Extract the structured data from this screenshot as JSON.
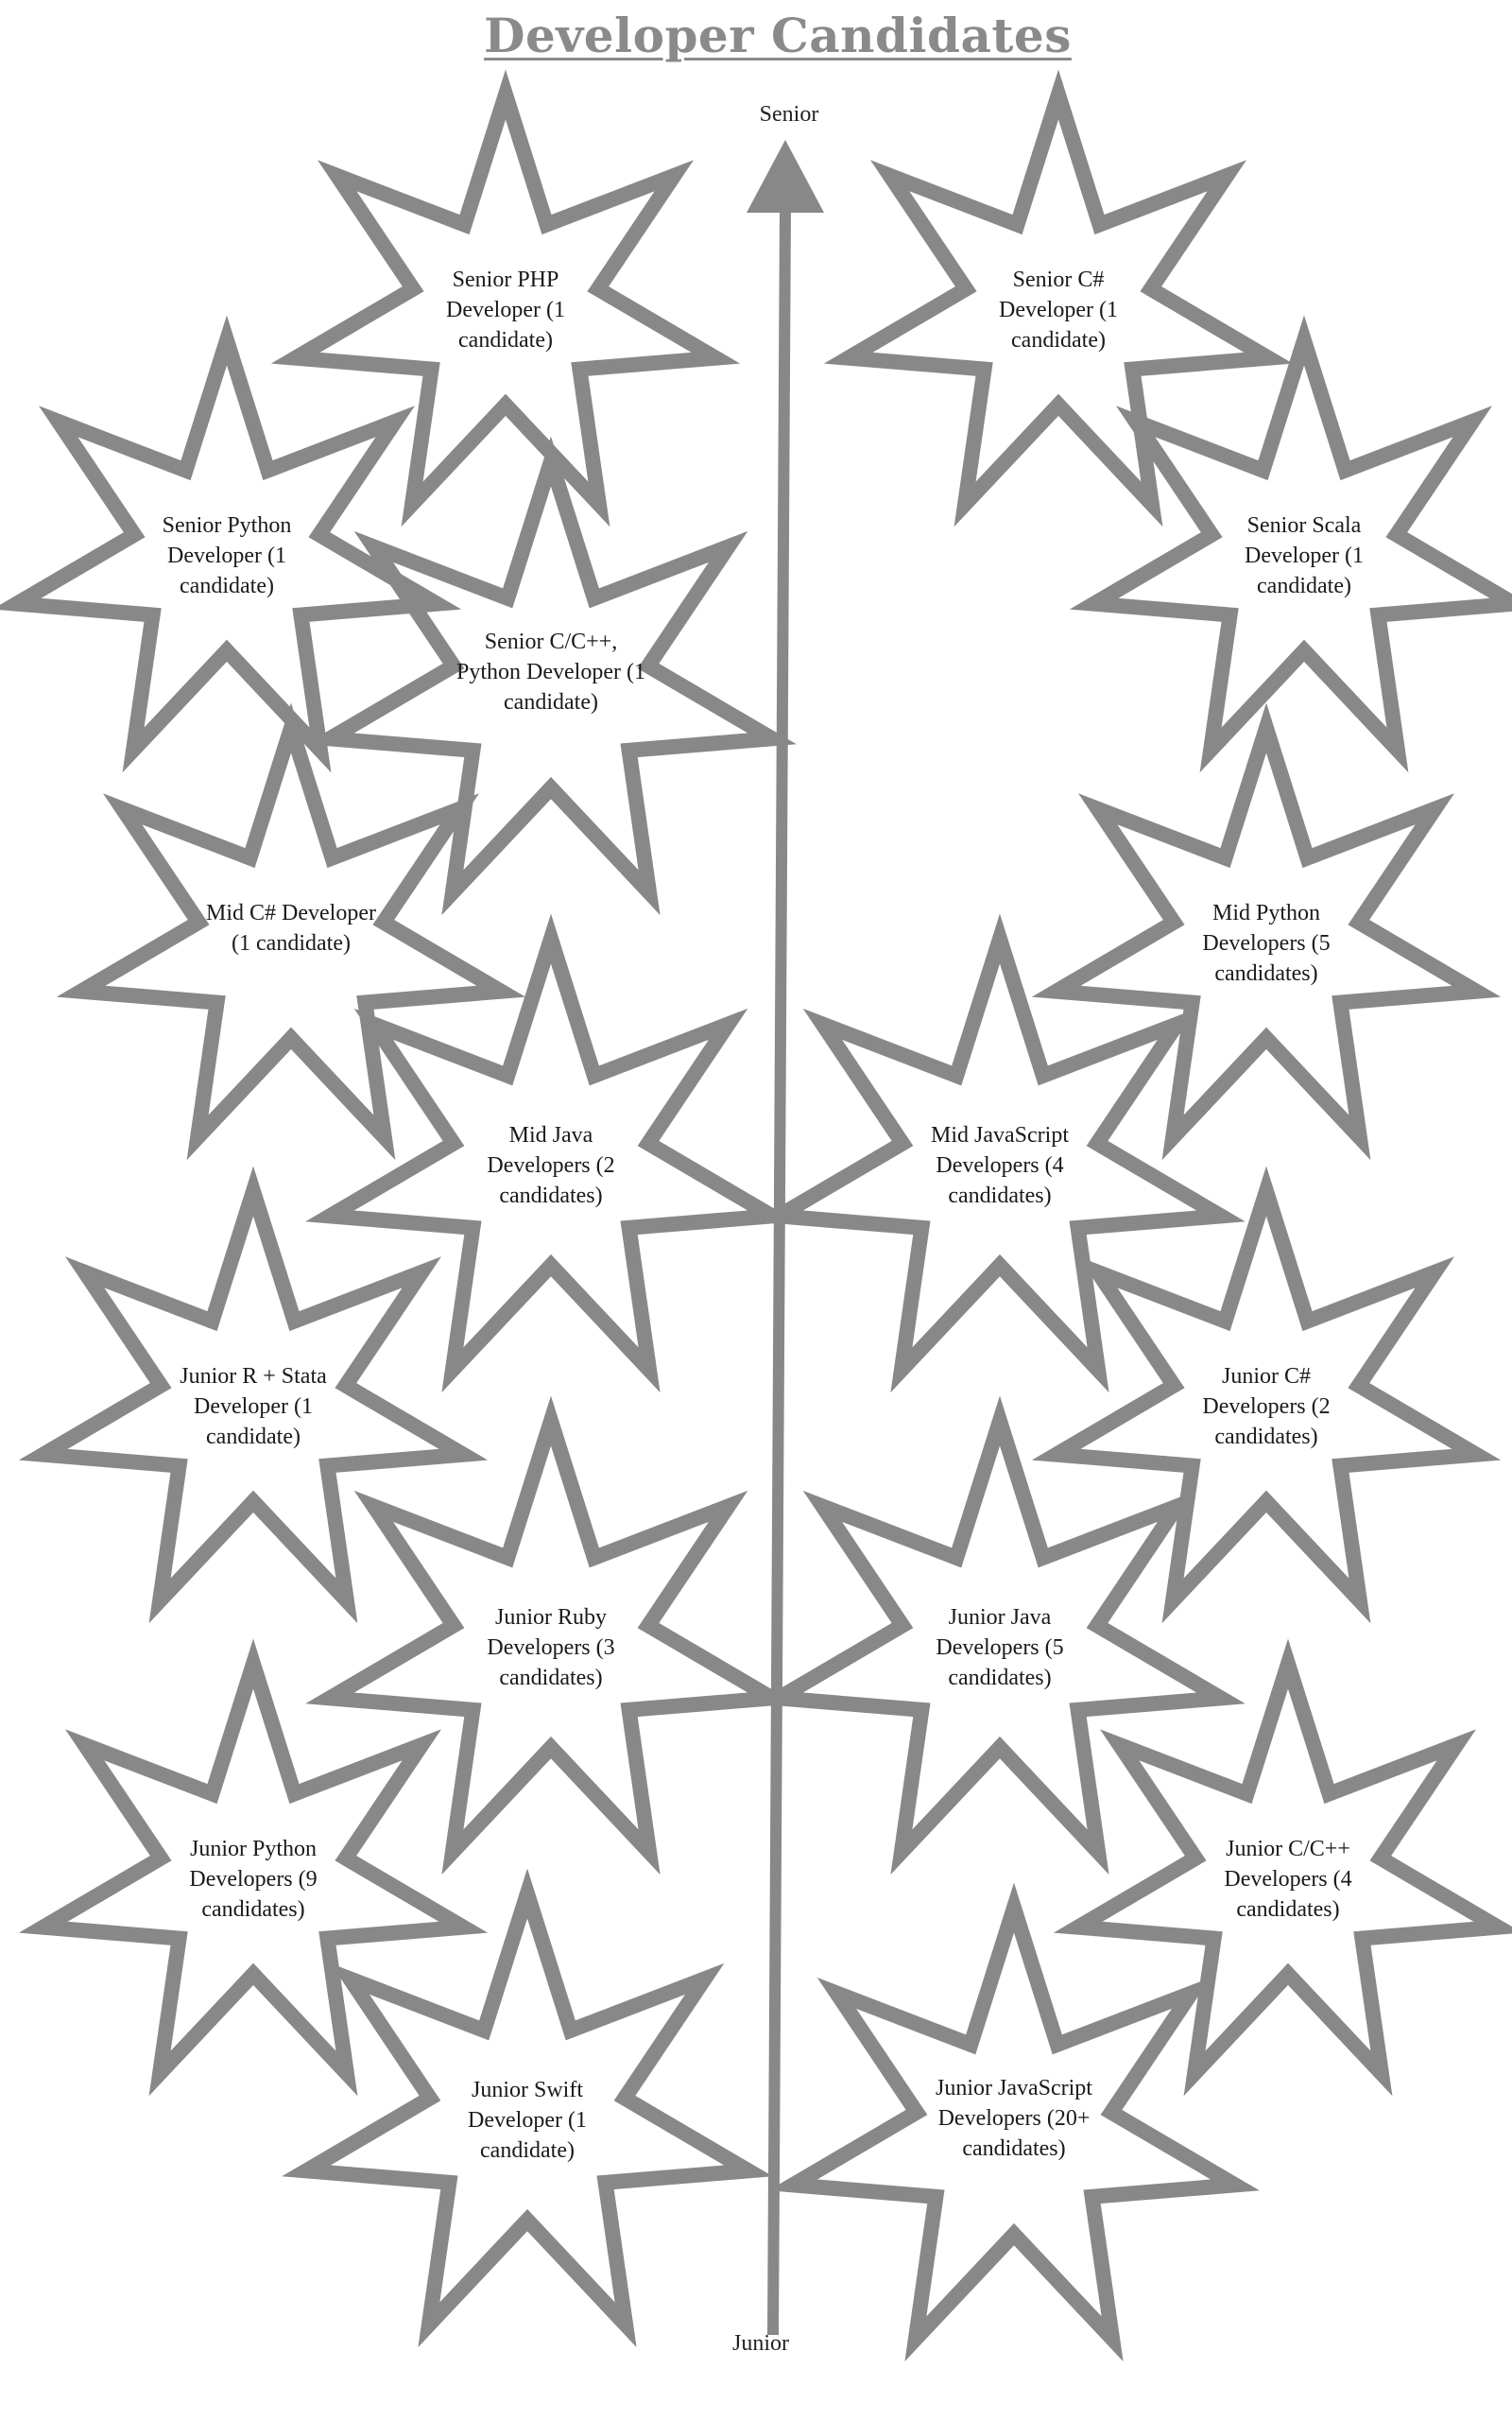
{
  "title": "Developer Candidates",
  "axis": {
    "top_label": "Senior",
    "bottom_label": "Junior"
  },
  "colors": {
    "outline": "#888888",
    "text": "#1a1a1a",
    "title": "#8a8a8a"
  },
  "candidates": [
    {
      "id": "senior-php",
      "label": "Senior PHP Developer (1 candidate)"
    },
    {
      "id": "senior-csharp",
      "label": "Senior C# Developer (1 candidate)"
    },
    {
      "id": "senior-python",
      "label": "Senior Python Developer (1 candidate)"
    },
    {
      "id": "senior-scala",
      "label": "Senior Scala Developer (1 candidate)"
    },
    {
      "id": "senior-cpp-python",
      "label": "Senior C/C++, Python Developer (1 candidate)"
    },
    {
      "id": "mid-csharp",
      "label": "Mid C# Developer (1 candidate)"
    },
    {
      "id": "mid-python",
      "label": "Mid Python Developers (5 candidates)"
    },
    {
      "id": "mid-java",
      "label": "Mid Java Developers (2 candidates)"
    },
    {
      "id": "mid-javascript",
      "label": "Mid JavaScript Developers (4 candidates)"
    },
    {
      "id": "junior-r-stata",
      "label": "Junior R + Stata Developer (1 candidate)"
    },
    {
      "id": "junior-csharp",
      "label": "Junior C# Developers (2 candidates)"
    },
    {
      "id": "junior-ruby",
      "label": "Junior Ruby Developers (3 candidates)"
    },
    {
      "id": "junior-java",
      "label": "Junior Java Developers (5 candidates)"
    },
    {
      "id": "junior-python",
      "label": "Junior Python Developers (9 candidates)"
    },
    {
      "id": "junior-cpp",
      "label": "Junior C/C++ Developers (4 candidates)"
    },
    {
      "id": "junior-swift",
      "label": "Junior Swift Developer (1 candidate)"
    },
    {
      "id": "junior-javascript",
      "label": "Junior JavaScript Developers (20+ candidates)"
    }
  ]
}
